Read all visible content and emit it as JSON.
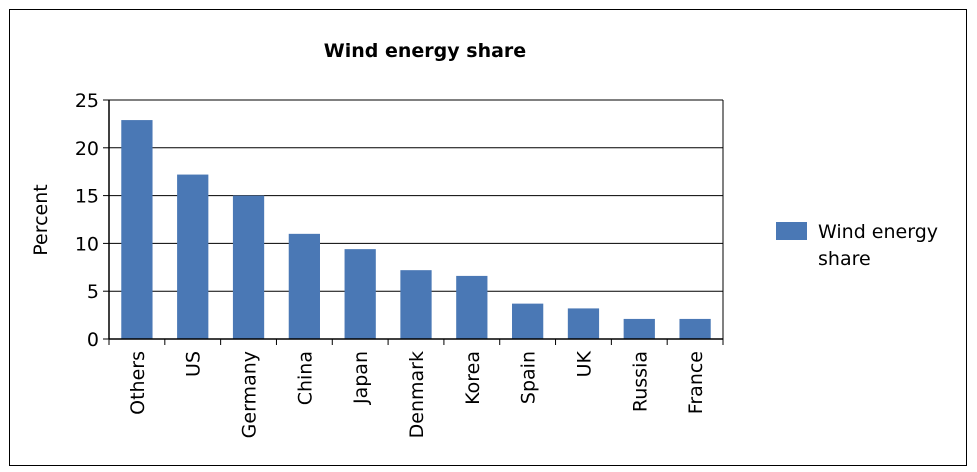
{
  "chart_data": {
    "type": "bar",
    "title": "Wind energy share",
    "xlabel": "",
    "ylabel": "Percent",
    "ylim": [
      0,
      25
    ],
    "yticks": [
      0,
      5,
      10,
      15,
      20,
      25
    ],
    "grid": true,
    "legend_position": "right",
    "bar_color": "#4a78b5",
    "categories": [
      "Others",
      "US",
      "Germany",
      "China",
      "Japan",
      "Denmark",
      "Korea",
      "Spain",
      "UK",
      "Russia",
      "France"
    ],
    "series": [
      {
        "name": "Wind energy share",
        "values": [
          22.9,
          17.2,
          15.0,
          11.0,
          9.4,
          7.2,
          6.6,
          3.7,
          3.2,
          2.1,
          2.1
        ]
      }
    ],
    "legend_lines": [
      "Wind energy",
      "share"
    ]
  }
}
